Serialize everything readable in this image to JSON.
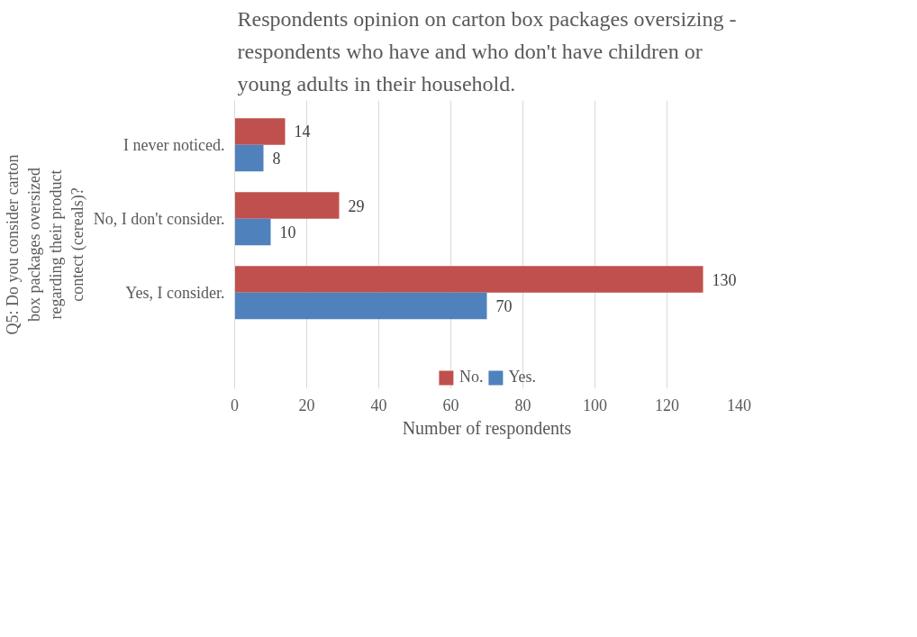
{
  "chart_data": {
    "type": "bar",
    "orientation": "horizontal",
    "title": "Respondents opinion on carton box packages oversizing - respondents who have and who don't have children or young adults  in their household.",
    "xlabel": "Number of respondents",
    "ylabel": "Q5: Do you consider carton box packages oversized regarding their product contect (cereals)?",
    "categories": [
      "I never noticed.",
      "No, I don't consider.",
      "Yes, I consider."
    ],
    "series": [
      {
        "name": "No.",
        "color": "#c0504d",
        "values": [
          14,
          29,
          130
        ]
      },
      {
        "name": "Yes.",
        "color": "#4f81bd",
        "values": [
          8,
          10,
          70
        ]
      }
    ],
    "xlim": [
      0,
      140
    ],
    "xticks": [
      0,
      20,
      40,
      60,
      80,
      100,
      120,
      140
    ],
    "grid": "x",
    "legend": "bottom",
    "data_labels": true
  }
}
